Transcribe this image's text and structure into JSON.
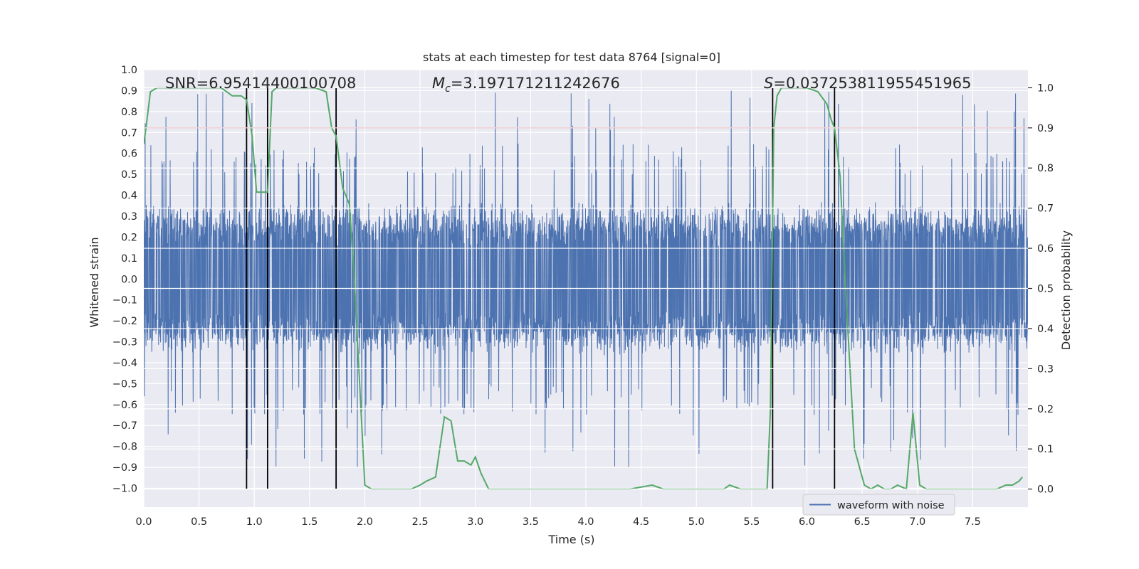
{
  "chart_data": {
    "type": "line",
    "title": "stats at each timestep for test data 8764 [signal=0]",
    "xlabel": "Time (s)",
    "ylabel": "Whitened strain",
    "y2label": "Detection probability",
    "xlim": [
      0.0,
      8.0
    ],
    "ylim": [
      -1.09,
      1.0
    ],
    "y2lim": [
      -0.045,
      1.045
    ],
    "x_ticks": [
      "0.0",
      "0.5",
      "1.0",
      "1.5",
      "2.0",
      "2.5",
      "3.0",
      "3.5",
      "4.0",
      "4.5",
      "5.0",
      "5.5",
      "6.0",
      "6.5",
      "7.0",
      "7.5"
    ],
    "y_ticks": [
      "1.0",
      "0.9",
      "0.8",
      "0.7",
      "0.6",
      "0.5",
      "0.4",
      "0.3",
      "0.2",
      "0.1",
      "0.0",
      "−0.1",
      "−0.2",
      "−0.3",
      "−0.4",
      "−0.5",
      "−0.6",
      "−0.7",
      "−0.8",
      "−0.9",
      "−1.0"
    ],
    "y2_ticks": [
      "1.0",
      "0.9",
      "0.8",
      "0.7",
      "0.6",
      "0.5",
      "0.4",
      "0.3",
      "0.2",
      "0.1",
      "0.0"
    ],
    "annotations": {
      "snr": "SNR=6.95414400100708",
      "mc_symbol": "M",
      "mc_sub": "c",
      "mc_value": "=3.197171211242676",
      "s_symbol": "S",
      "s_value": "=0.037253811955451965"
    },
    "threshold": 0.9,
    "event_lines_x": [
      0.93,
      1.12,
      1.74,
      5.69,
      6.25
    ],
    "legend": "waveform with noise",
    "legend_position": "lower-right",
    "colors": {
      "waveform": "#4c72b0",
      "probability": "#55a868",
      "threshold": "#c44e52",
      "event_lines": "#000000",
      "background": "#eaeaf2",
      "grid": "#ffffff"
    },
    "series": [
      {
        "name": "waveform with noise",
        "description": "whitened strain samples, dense noise spanning roughly -0.45..0.45 with spikes to about +/-0.9"
      },
      {
        "name": "detection probability",
        "x": [
          0.0,
          0.02,
          0.06,
          0.12,
          0.2,
          0.3,
          0.4,
          0.5,
          0.6,
          0.7,
          0.8,
          0.88,
          0.93,
          0.98,
          1.02,
          1.06,
          1.09,
          1.12,
          1.16,
          1.2,
          1.26,
          1.35,
          1.45,
          1.55,
          1.65,
          1.7,
          1.74,
          1.8,
          1.86,
          1.9,
          1.95,
          2.0,
          2.06,
          2.15,
          2.25,
          2.35,
          2.42,
          2.5,
          2.56,
          2.64,
          2.72,
          2.78,
          2.84,
          2.9,
          2.96,
          3.0,
          3.05,
          3.12,
          3.2,
          3.4,
          3.6,
          3.8,
          4.0,
          4.2,
          4.4,
          4.6,
          4.7,
          4.8,
          5.0,
          5.2,
          5.25,
          5.3,
          5.4,
          5.5,
          5.6,
          5.64,
          5.67,
          5.7,
          5.73,
          5.77,
          5.82,
          5.9,
          6.0,
          6.1,
          6.18,
          6.22,
          6.25,
          6.3,
          6.35,
          6.43,
          6.52,
          6.58,
          6.64,
          6.7,
          6.76,
          6.82,
          6.9,
          6.96,
          7.02,
          7.08,
          7.16,
          7.3,
          7.45,
          7.6,
          7.72,
          7.8,
          7.86,
          7.92,
          7.95
        ],
        "y": [
          0.86,
          0.9,
          0.99,
          1.0,
          1.0,
          1.0,
          1.0,
          1.0,
          1.0,
          1.0,
          0.98,
          0.98,
          0.97,
          0.88,
          0.74,
          0.74,
          0.74,
          0.74,
          0.99,
          1.0,
          1.0,
          1.0,
          1.0,
          1.0,
          0.99,
          0.9,
          0.88,
          0.75,
          0.71,
          0.55,
          0.28,
          0.01,
          0.0,
          0.0,
          0.0,
          0.0,
          0.0,
          0.01,
          0.02,
          0.03,
          0.18,
          0.17,
          0.07,
          0.07,
          0.06,
          0.08,
          0.04,
          0.0,
          0.0,
          0.0,
          0.0,
          0.0,
          0.0,
          0.0,
          0.0,
          0.01,
          0.0,
          0.0,
          0.0,
          0.0,
          0.0,
          0.01,
          0.0,
          0.0,
          0.0,
          0.0,
          0.2,
          0.9,
          0.98,
          1.0,
          1.0,
          1.0,
          1.0,
          0.99,
          0.96,
          0.92,
          0.9,
          0.78,
          0.5,
          0.1,
          0.01,
          0.0,
          0.01,
          0.0,
          0.0,
          0.01,
          0.0,
          0.19,
          0.01,
          0.0,
          0.0,
          0.0,
          0.0,
          0.0,
          0.0,
          0.01,
          0.01,
          0.02,
          0.03
        ]
      }
    ]
  }
}
